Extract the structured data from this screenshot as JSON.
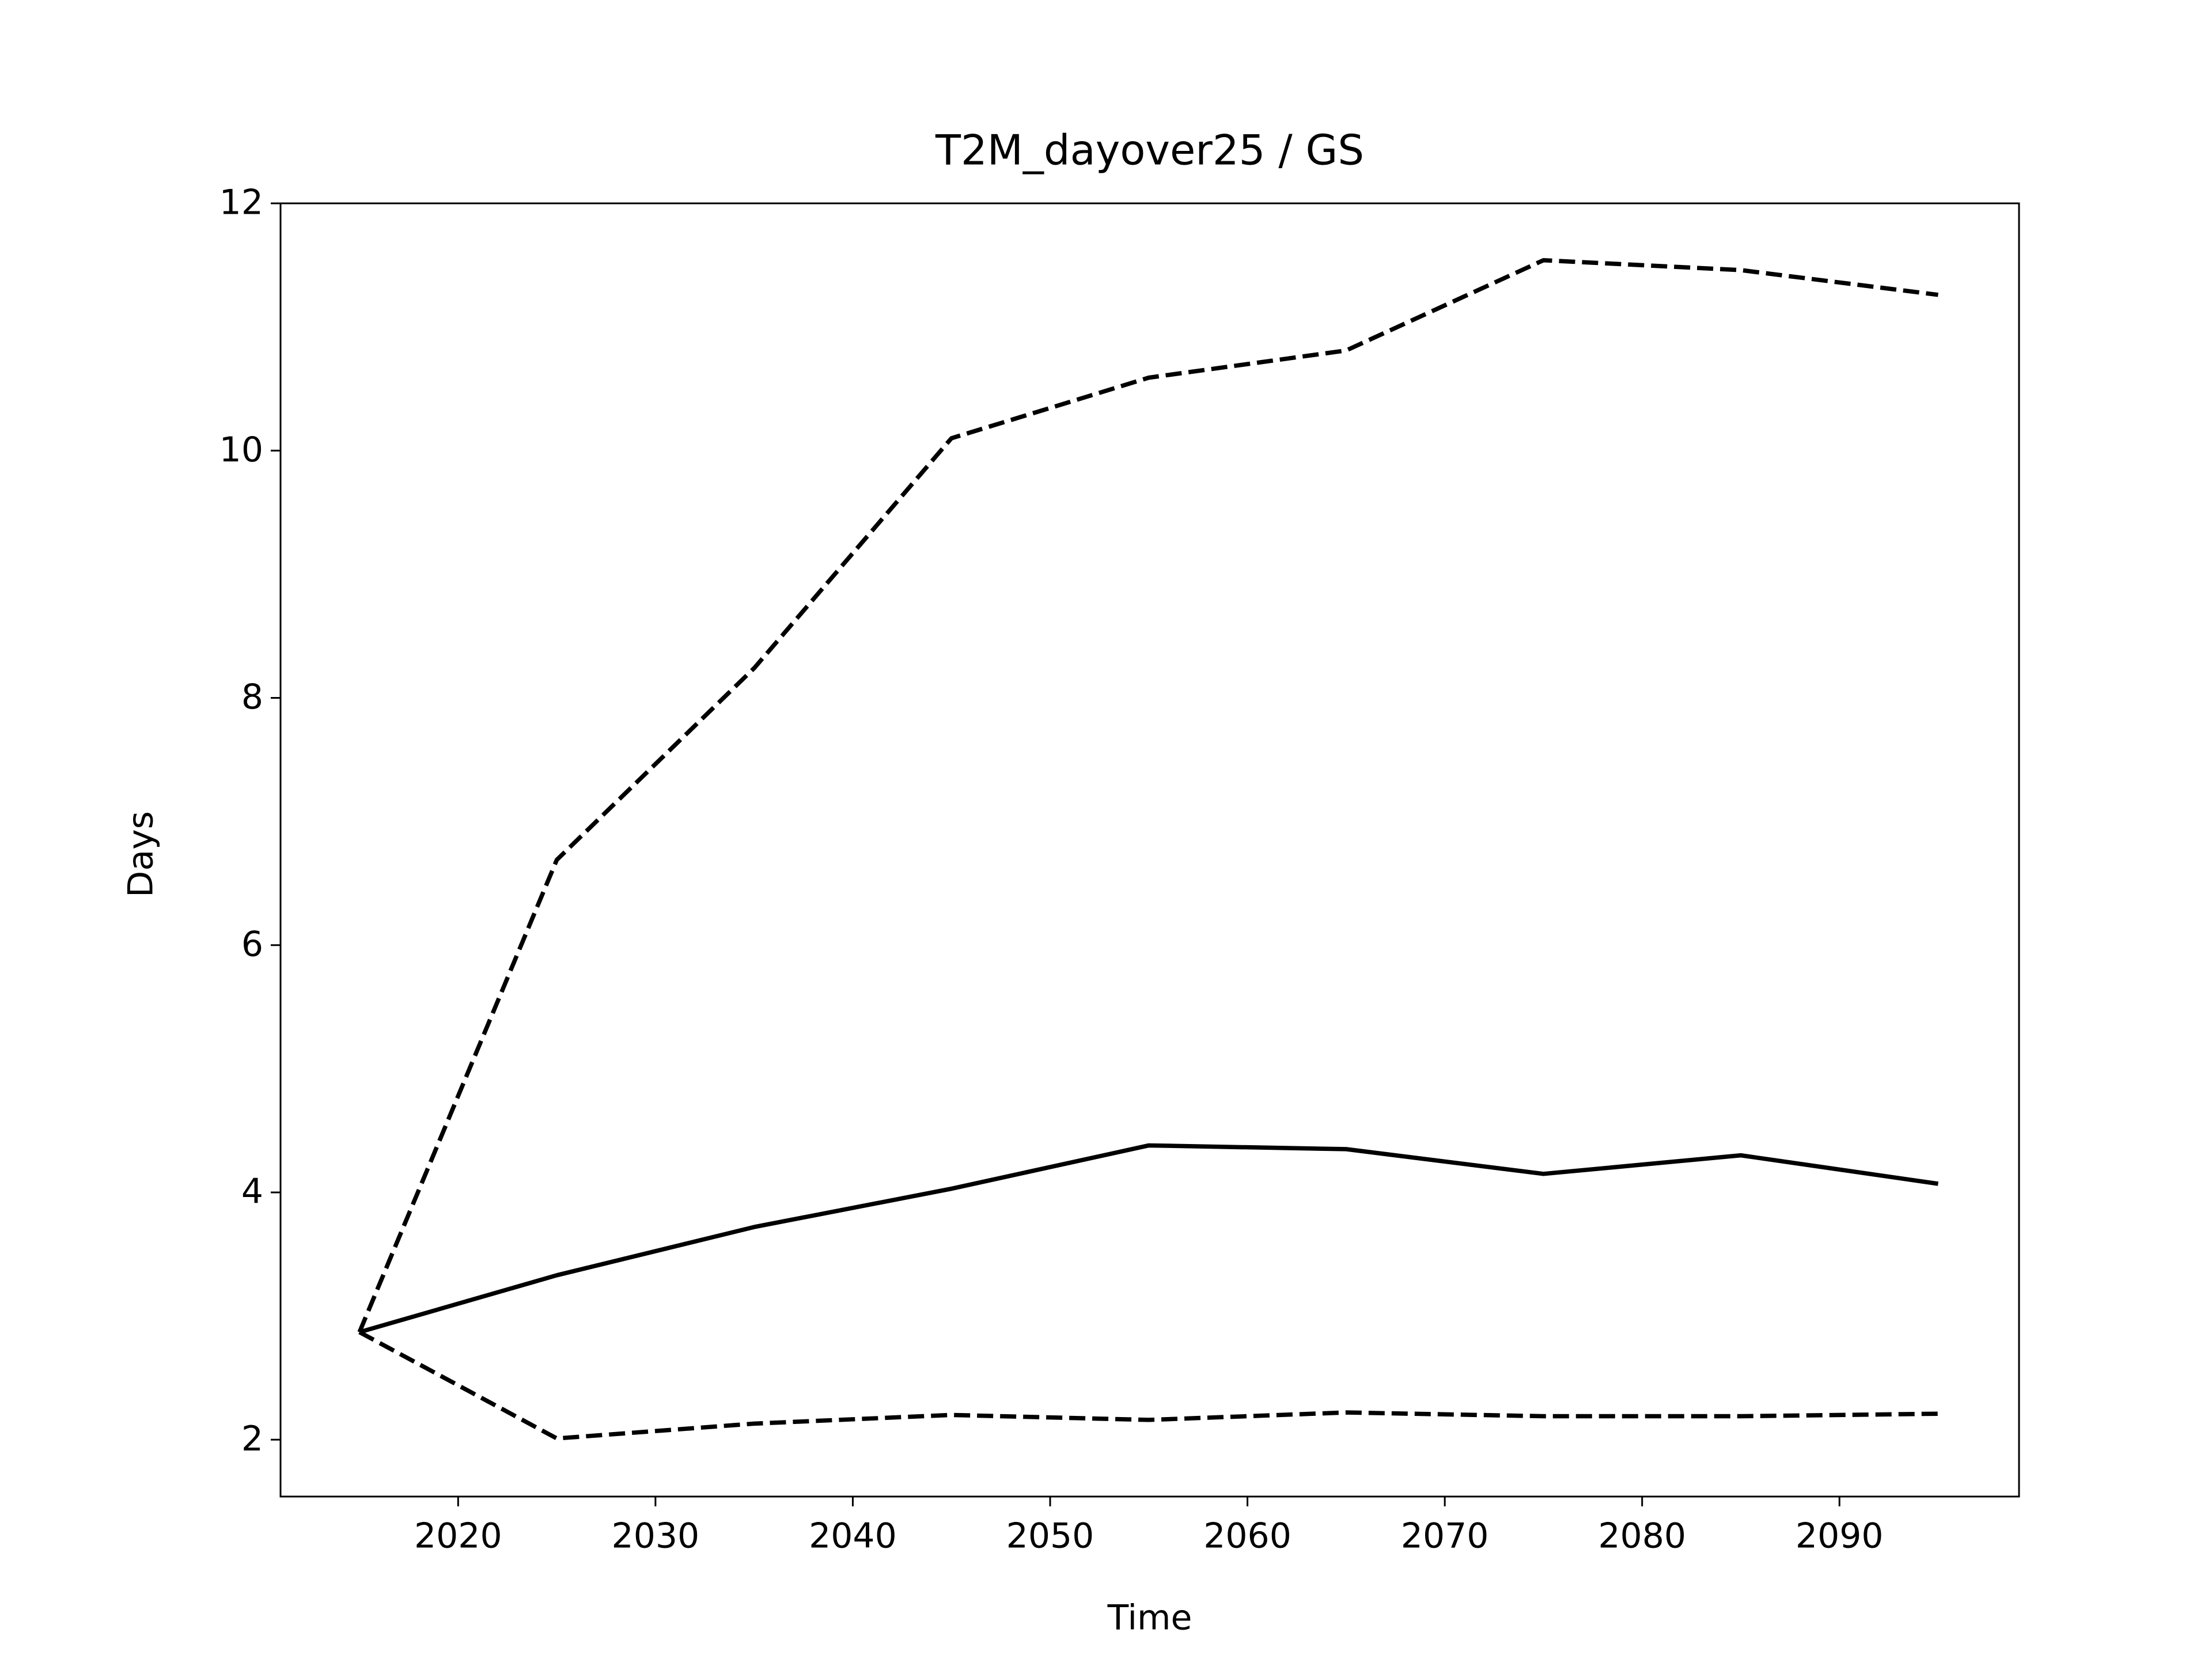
{
  "chart_data": {
    "type": "line",
    "title": "T2M_dayover25 / GS",
    "x_label": "Time",
    "y_label": "Days",
    "x": [
      2015,
      2025,
      2035,
      2045,
      2055,
      2065,
      2075,
      2085,
      2095
    ],
    "series": [
      {
        "color": "#000000",
        "linestyle": "solid",
        "values": [
          2.87,
          3.33,
          3.72,
          4.03,
          4.38,
          4.35,
          4.15,
          4.3,
          4.07
        ]
      },
      {
        "color": "#000000",
        "linestyle": "dashed",
        "values": [
          2.87,
          6.69,
          8.24,
          10.1,
          10.59,
          10.81,
          11.54,
          11.46,
          11.26
        ]
      },
      {
        "color": "#000000",
        "linestyle": "dashed",
        "values": [
          2.87,
          2.01,
          2.13,
          2.2,
          2.16,
          2.22,
          2.19,
          2.19,
          2.21
        ]
      }
    ],
    "xlim": [
      2011.0,
      2099.1
    ],
    "ylim": [
      1.54,
      12
    ],
    "xticks": [
      2020,
      2030,
      2040,
      2050,
      2060,
      2070,
      2080,
      2090
    ],
    "yticks": [
      2,
      4,
      6,
      8,
      10,
      12
    ],
    "grid": false
  }
}
